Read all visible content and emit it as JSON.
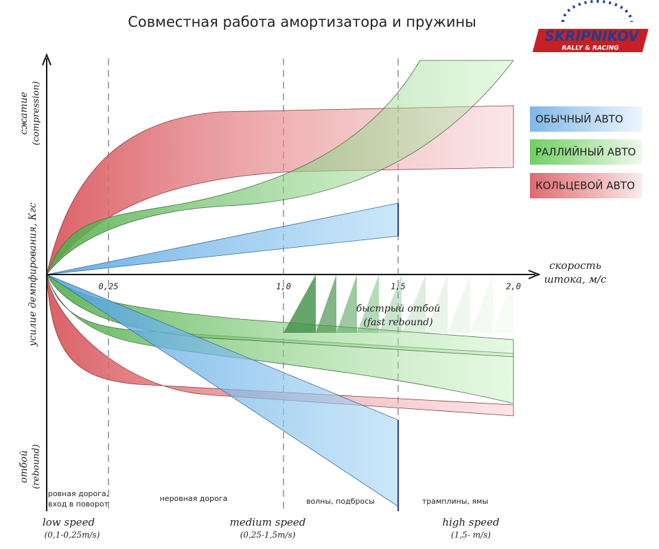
{
  "header": {
    "title": "Совместная работа амортизатора и пружины",
    "logo": "SKRIPNIKOV",
    "logo_sub": "RALLY & RACING"
  },
  "legend": [
    "ОБЫЧНЫЙ АВТО",
    "РАЛЛИЙНЫЙ АВТО",
    "КОЛЬЦЕВОЙ АВТО"
  ],
  "axes": {
    "x_title": [
      "скорость",
      "штока, м/с"
    ],
    "x_ticks": [
      "0,25",
      "1,0",
      "1,5",
      "2,0"
    ],
    "y_title": "усилие демпфирования, Кгс",
    "y_top": [
      "сжатие",
      "(compression)"
    ],
    "y_bottom": [
      "отбой",
      "(rebound)"
    ]
  },
  "annotation": [
    "быстрый отбой",
    "(fast rebound)"
  ],
  "zones": [
    [
      "ровная дорога,",
      "вход в поворот"
    ],
    [
      "неровная дорога"
    ],
    [
      "волны, подбросы"
    ],
    [
      "трамплины, ямы"
    ]
  ],
  "speeds": [
    {
      "name": "low speed",
      "range": "(0,1-0,25m/s)"
    },
    {
      "name": "medium speed",
      "range": "(0,25-1,5m/s)"
    },
    {
      "name": "high speed",
      "range": "(1,5- m/s)"
    }
  ]
}
